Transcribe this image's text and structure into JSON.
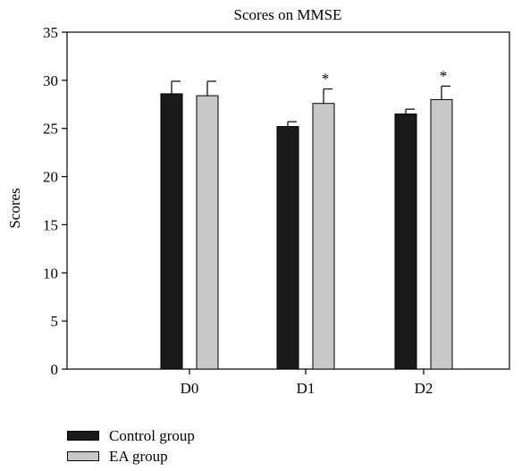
{
  "chart_data": {
    "type": "bar",
    "title": "Scores on MMSE",
    "xlabel": "",
    "ylabel": "Scores",
    "ylim": [
      0,
      35
    ],
    "yticks": [
      0,
      5,
      10,
      15,
      20,
      25,
      30,
      35
    ],
    "categories": [
      "D0",
      "D1",
      "D2"
    ],
    "series": [
      {
        "name": "Control group",
        "color": "#1a1a1a",
        "values": [
          28.6,
          25.2,
          26.5
        ],
        "errors": [
          1.3,
          0.5,
          0.5
        ]
      },
      {
        "name": "EA group",
        "color": "#c8c8c8",
        "values": [
          28.4,
          27.6,
          28.0
        ],
        "errors": [
          1.5,
          1.5,
          1.4
        ]
      }
    ],
    "annotations": [
      {
        "category": "D1",
        "series": "EA group",
        "text": "*"
      },
      {
        "category": "D2",
        "series": "EA group",
        "text": "*"
      }
    ],
    "grid": false,
    "legend_position": "bottom-left"
  }
}
